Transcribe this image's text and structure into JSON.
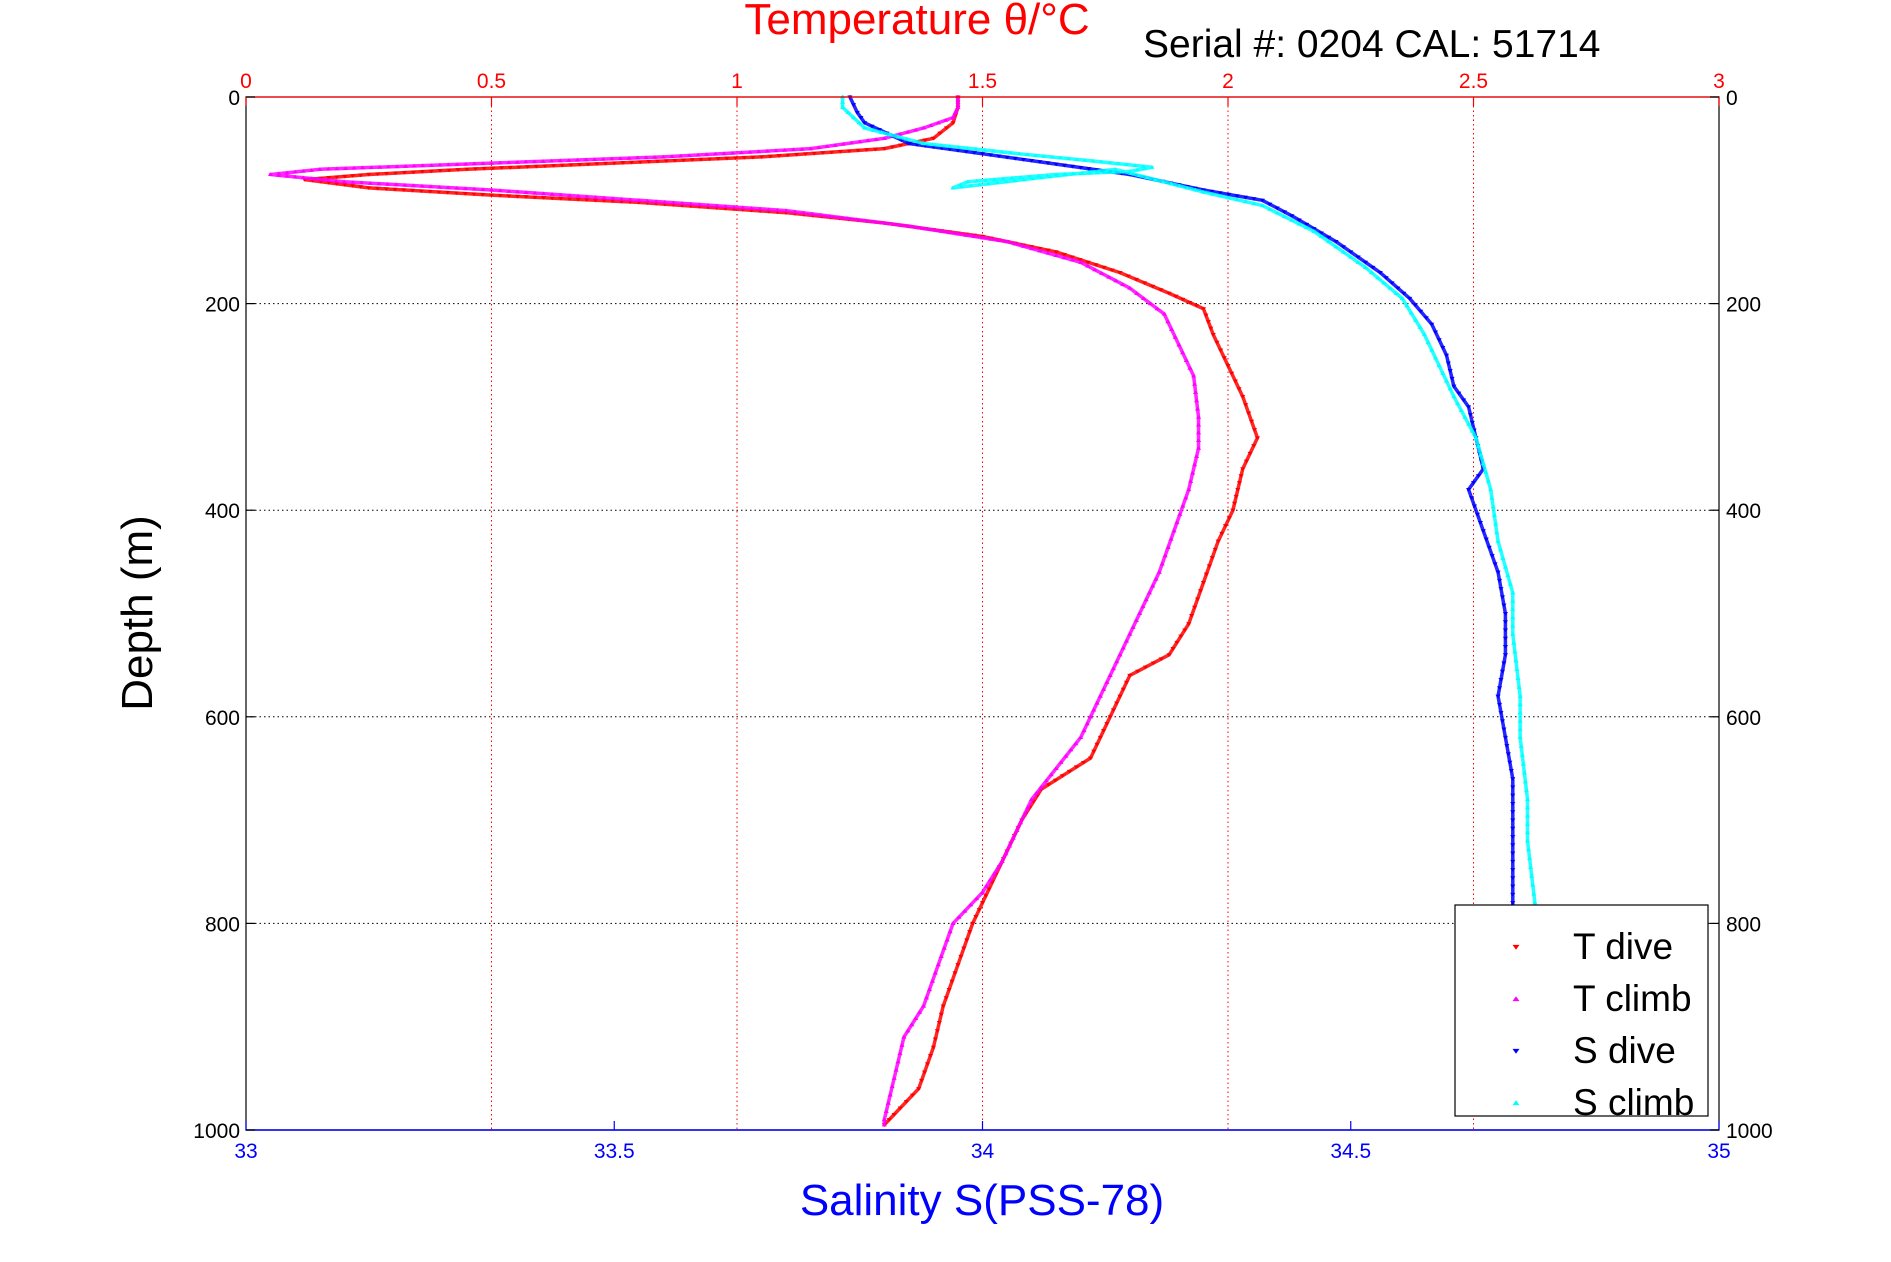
{
  "chart_data": {
    "type": "scatter",
    "top_title": "Temperature θ/°C",
    "bottom_title": "Salinity S(PSS-78)",
    "ylabel": "Depth (m)",
    "annotation": "Serial #: 0204  CAL: 51714",
    "ylim": [
      0,
      1000
    ],
    "y_inverted": true,
    "y_ticks": [
      0,
      200,
      400,
      600,
      800,
      1000
    ],
    "temperature_axis": {
      "position": "top",
      "range": [
        0,
        3
      ],
      "ticks": [
        0,
        0.5,
        1,
        1.5,
        2,
        2.5,
        3
      ],
      "color": "#ff0000"
    },
    "salinity_axis": {
      "position": "bottom",
      "range": [
        33,
        35
      ],
      "ticks": [
        33,
        33.5,
        34,
        34.5,
        35
      ],
      "color": "#0000ff"
    },
    "grid": true,
    "legend": {
      "placement": "bottom-right"
    },
    "series": [
      {
        "name": "T dive",
        "axis": "temperature",
        "color": "#ff0000",
        "marker": "triangle-down",
        "points": [
          [
            1.45,
            0
          ],
          [
            1.45,
            10
          ],
          [
            1.44,
            25
          ],
          [
            1.4,
            40
          ],
          [
            1.3,
            50
          ],
          [
            1.05,
            58
          ],
          [
            0.75,
            64
          ],
          [
            0.45,
            70
          ],
          [
            0.25,
            75
          ],
          [
            0.12,
            80
          ],
          [
            0.25,
            88
          ],
          [
            0.5,
            95
          ],
          [
            0.8,
            102
          ],
          [
            1.1,
            112
          ],
          [
            1.3,
            122
          ],
          [
            1.5,
            135
          ],
          [
            1.65,
            150
          ],
          [
            1.78,
            170
          ],
          [
            1.88,
            190
          ],
          [
            1.95,
            205
          ],
          [
            1.97,
            230
          ],
          [
            2.0,
            260
          ],
          [
            2.03,
            290
          ],
          [
            2.06,
            330
          ],
          [
            2.03,
            360
          ],
          [
            2.02,
            380
          ],
          [
            2.01,
            400
          ],
          [
            1.98,
            430
          ],
          [
            1.95,
            470
          ],
          [
            1.92,
            510
          ],
          [
            1.88,
            540
          ],
          [
            1.8,
            560
          ],
          [
            1.76,
            600
          ],
          [
            1.72,
            640
          ],
          [
            1.62,
            670
          ],
          [
            1.58,
            700
          ],
          [
            1.55,
            730
          ],
          [
            1.52,
            760
          ],
          [
            1.48,
            800
          ],
          [
            1.45,
            840
          ],
          [
            1.42,
            880
          ],
          [
            1.4,
            920
          ],
          [
            1.37,
            960
          ],
          [
            1.32,
            985
          ],
          [
            1.3,
            995
          ]
        ]
      },
      {
        "name": "T climb",
        "axis": "temperature",
        "color": "#ff00ff",
        "marker": "triangle-up",
        "points": [
          [
            1.45,
            0
          ],
          [
            1.45,
            10
          ],
          [
            1.44,
            20
          ],
          [
            1.38,
            30
          ],
          [
            1.3,
            40
          ],
          [
            1.15,
            50
          ],
          [
            0.85,
            58
          ],
          [
            0.5,
            64
          ],
          [
            0.15,
            70
          ],
          [
            0.05,
            75
          ],
          [
            0.2,
            82
          ],
          [
            0.5,
            90
          ],
          [
            0.8,
            100
          ],
          [
            1.1,
            110
          ],
          [
            1.35,
            125
          ],
          [
            1.55,
            140
          ],
          [
            1.7,
            160
          ],
          [
            1.8,
            185
          ],
          [
            1.87,
            210
          ],
          [
            1.9,
            240
          ],
          [
            1.93,
            270
          ],
          [
            1.94,
            310
          ],
          [
            1.94,
            340
          ],
          [
            1.92,
            380
          ],
          [
            1.89,
            420
          ],
          [
            1.86,
            460
          ],
          [
            1.82,
            500
          ],
          [
            1.78,
            540
          ],
          [
            1.74,
            580
          ],
          [
            1.7,
            620
          ],
          [
            1.65,
            650
          ],
          [
            1.6,
            680
          ],
          [
            1.57,
            710
          ],
          [
            1.54,
            740
          ],
          [
            1.5,
            770
          ],
          [
            1.44,
            800
          ],
          [
            1.41,
            840
          ],
          [
            1.38,
            880
          ],
          [
            1.34,
            910
          ],
          [
            1.32,
            950
          ],
          [
            1.3,
            990
          ],
          [
            1.3,
            995
          ]
        ]
      },
      {
        "name": "S dive",
        "axis": "salinity",
        "color": "#0000ff",
        "marker": "triangle-down",
        "points": [
          [
            33.82,
            0
          ],
          [
            33.83,
            15
          ],
          [
            33.84,
            25
          ],
          [
            33.9,
            45
          ],
          [
            34.0,
            55
          ],
          [
            34.1,
            65
          ],
          [
            34.2,
            75
          ],
          [
            34.3,
            90
          ],
          [
            34.38,
            100
          ],
          [
            34.42,
            115
          ],
          [
            34.48,
            140
          ],
          [
            34.54,
            170
          ],
          [
            34.58,
            195
          ],
          [
            34.61,
            220
          ],
          [
            34.63,
            250
          ],
          [
            34.64,
            280
          ],
          [
            34.66,
            300
          ],
          [
            34.67,
            330
          ],
          [
            34.68,
            360
          ],
          [
            34.66,
            380
          ],
          [
            34.68,
            420
          ],
          [
            34.7,
            460
          ],
          [
            34.71,
            500
          ],
          [
            34.71,
            540
          ],
          [
            34.7,
            580
          ],
          [
            34.71,
            620
          ],
          [
            34.72,
            660
          ],
          [
            34.72,
            700
          ],
          [
            34.72,
            740
          ],
          [
            34.72,
            780
          ],
          [
            34.72,
            820
          ],
          [
            34.72,
            860
          ],
          [
            34.72,
            900
          ],
          [
            34.72,
            940
          ],
          [
            34.72,
            980
          ]
        ]
      },
      {
        "name": "S climb",
        "axis": "salinity",
        "color": "#00ffff",
        "marker": "triangle-up",
        "points": [
          [
            33.81,
            0
          ],
          [
            33.81,
            10
          ],
          [
            33.84,
            30
          ],
          [
            33.92,
            45
          ],
          [
            34.05,
            55
          ],
          [
            34.15,
            62
          ],
          [
            34.23,
            68
          ],
          [
            34.2,
            72
          ],
          [
            34.1,
            75
          ],
          [
            33.98,
            82
          ],
          [
            33.96,
            88
          ],
          [
            34.08,
            78
          ],
          [
            34.18,
            70
          ],
          [
            34.3,
            92
          ],
          [
            34.38,
            105
          ],
          [
            34.45,
            130
          ],
          [
            34.52,
            165
          ],
          [
            34.57,
            195
          ],
          [
            34.6,
            230
          ],
          [
            34.62,
            260
          ],
          [
            34.64,
            290
          ],
          [
            34.67,
            330
          ],
          [
            34.69,
            380
          ],
          [
            34.7,
            430
          ],
          [
            34.72,
            480
          ],
          [
            34.72,
            520
          ],
          [
            34.73,
            580
          ],
          [
            34.73,
            620
          ],
          [
            34.74,
            680
          ],
          [
            34.74,
            720
          ],
          [
            34.75,
            780
          ]
        ]
      }
    ]
  }
}
